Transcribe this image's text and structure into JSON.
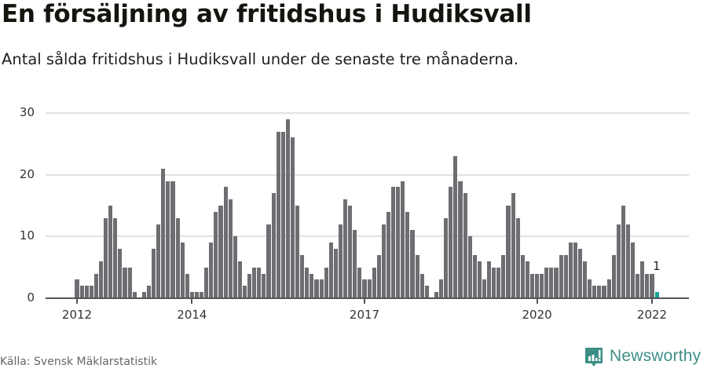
{
  "header": {
    "title": "En försäljning av fritidshus i Hudiksvall",
    "subtitle": "Antal sålda fritidshus i Hudiksvall under de senaste tre månaderna."
  },
  "footer": {
    "source": "Källa: Svensk Mäklarstatistik",
    "brand": "Newsworthy",
    "brand_icon": "newsworthy-logo-icon"
  },
  "colors": {
    "bar": "#6e6d72",
    "highlight": "#17a398",
    "gridline": "#e1e1e1",
    "axis": "#555458",
    "brand": "#3d8f86"
  },
  "chart_data": {
    "type": "bar",
    "title": "En försäljning av fritidshus i Hudiksvall",
    "subtitle": "Antal sålda fritidshus i Hudiksvall under de senaste tre månaderna.",
    "xlabel": "",
    "ylabel": "",
    "ylim": [
      0,
      30
    ],
    "yticks": [
      0,
      10,
      20,
      30
    ],
    "xticks": [
      "2012",
      "2014",
      "2017",
      "2020",
      "2022"
    ],
    "grid": true,
    "legend": null,
    "start": "2012-01",
    "frequency": "monthly",
    "highlight_last": true,
    "annotation": {
      "label": "1",
      "at": "2022-02"
    },
    "categories": [
      "2012-01",
      "2012-02",
      "2012-03",
      "2012-04",
      "2012-05",
      "2012-06",
      "2012-07",
      "2012-08",
      "2012-09",
      "2012-10",
      "2012-11",
      "2012-12",
      "2013-01",
      "2013-02",
      "2013-03",
      "2013-04",
      "2013-05",
      "2013-06",
      "2013-07",
      "2013-08",
      "2013-09",
      "2013-10",
      "2013-11",
      "2013-12",
      "2014-01",
      "2014-02",
      "2014-03",
      "2014-04",
      "2014-05",
      "2014-06",
      "2014-07",
      "2014-08",
      "2014-09",
      "2014-10",
      "2014-11",
      "2014-12",
      "2015-01",
      "2015-02",
      "2015-03",
      "2015-04",
      "2015-05",
      "2015-06",
      "2015-07",
      "2015-08",
      "2015-09",
      "2015-10",
      "2015-11",
      "2015-12",
      "2016-01",
      "2016-02",
      "2016-03",
      "2016-04",
      "2016-05",
      "2016-06",
      "2016-07",
      "2016-08",
      "2016-09",
      "2016-10",
      "2016-11",
      "2016-12",
      "2017-01",
      "2017-02",
      "2017-03",
      "2017-04",
      "2017-05",
      "2017-06",
      "2017-07",
      "2017-08",
      "2017-09",
      "2017-10",
      "2017-11",
      "2017-12",
      "2018-01",
      "2018-02",
      "2018-03",
      "2018-04",
      "2018-05",
      "2018-06",
      "2018-07",
      "2018-08",
      "2018-09",
      "2018-10",
      "2018-11",
      "2018-12",
      "2019-01",
      "2019-02",
      "2019-03",
      "2019-04",
      "2019-05",
      "2019-06",
      "2019-07",
      "2019-08",
      "2019-09",
      "2019-10",
      "2019-11",
      "2019-12",
      "2020-01",
      "2020-02",
      "2020-03",
      "2020-04",
      "2020-05",
      "2020-06",
      "2020-07",
      "2020-08",
      "2020-09",
      "2020-10",
      "2020-11",
      "2020-12",
      "2021-01",
      "2021-02",
      "2021-03",
      "2021-04",
      "2021-05",
      "2021-06",
      "2021-07",
      "2021-08",
      "2021-09",
      "2021-10",
      "2021-11",
      "2021-12",
      "2022-01",
      "2022-02"
    ],
    "values": [
      3,
      2,
      2,
      2,
      4,
      6,
      13,
      15,
      13,
      8,
      5,
      5,
      1,
      0,
      1,
      2,
      8,
      12,
      21,
      19,
      19,
      13,
      9,
      4,
      1,
      1,
      1,
      5,
      9,
      14,
      15,
      18,
      16,
      10,
      6,
      2,
      4,
      5,
      5,
      4,
      12,
      17,
      27,
      27,
      29,
      26,
      15,
      7,
      5,
      4,
      3,
      3,
      5,
      9,
      8,
      12,
      16,
      15,
      11,
      5,
      3,
      3,
      5,
      7,
      12,
      14,
      18,
      18,
      19,
      14,
      11,
      7,
      4,
      2,
      0,
      1,
      3,
      13,
      18,
      23,
      19,
      17,
      10,
      7,
      6,
      3,
      6,
      5,
      5,
      7,
      15,
      17,
      13,
      7,
      6,
      4,
      4,
      4,
      5,
      5,
      5,
      7,
      7,
      9,
      9,
      8,
      6,
      3,
      2,
      2,
      2,
      3,
      7,
      12,
      15,
      12,
      9,
      4,
      6,
      4,
      4,
      1
    ]
  }
}
